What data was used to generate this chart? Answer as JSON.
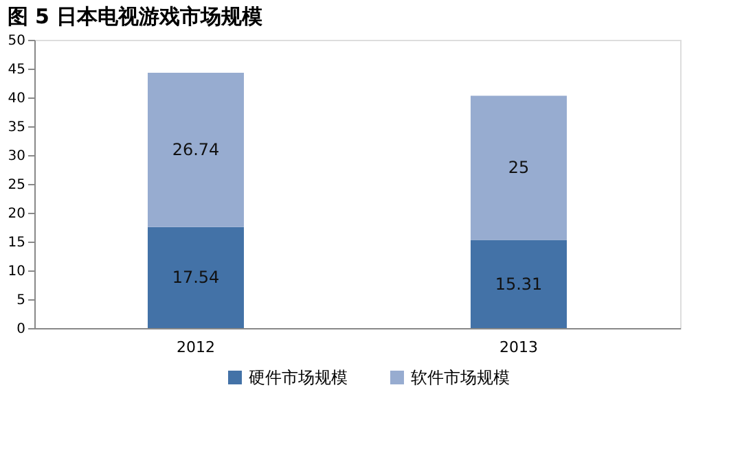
{
  "chart_data": {
    "type": "bar",
    "title": "图 5 日本电视游戏市场规模",
    "categories": [
      "2012",
      "2013"
    ],
    "stacked": true,
    "series": [
      {
        "name": "硬件市场规模",
        "color": "#4372a7",
        "values": [
          17.54,
          15.31
        ]
      },
      {
        "name": "软件市场规模",
        "color": "#97acd0",
        "values": [
          26.74,
          25
        ]
      }
    ],
    "ylim": [
      0,
      50
    ],
    "yticks": [
      0,
      5,
      10,
      15,
      20,
      25,
      30,
      35,
      40,
      45,
      50
    ],
    "data_labels": true,
    "legend": "bottom",
    "grid": false
  }
}
